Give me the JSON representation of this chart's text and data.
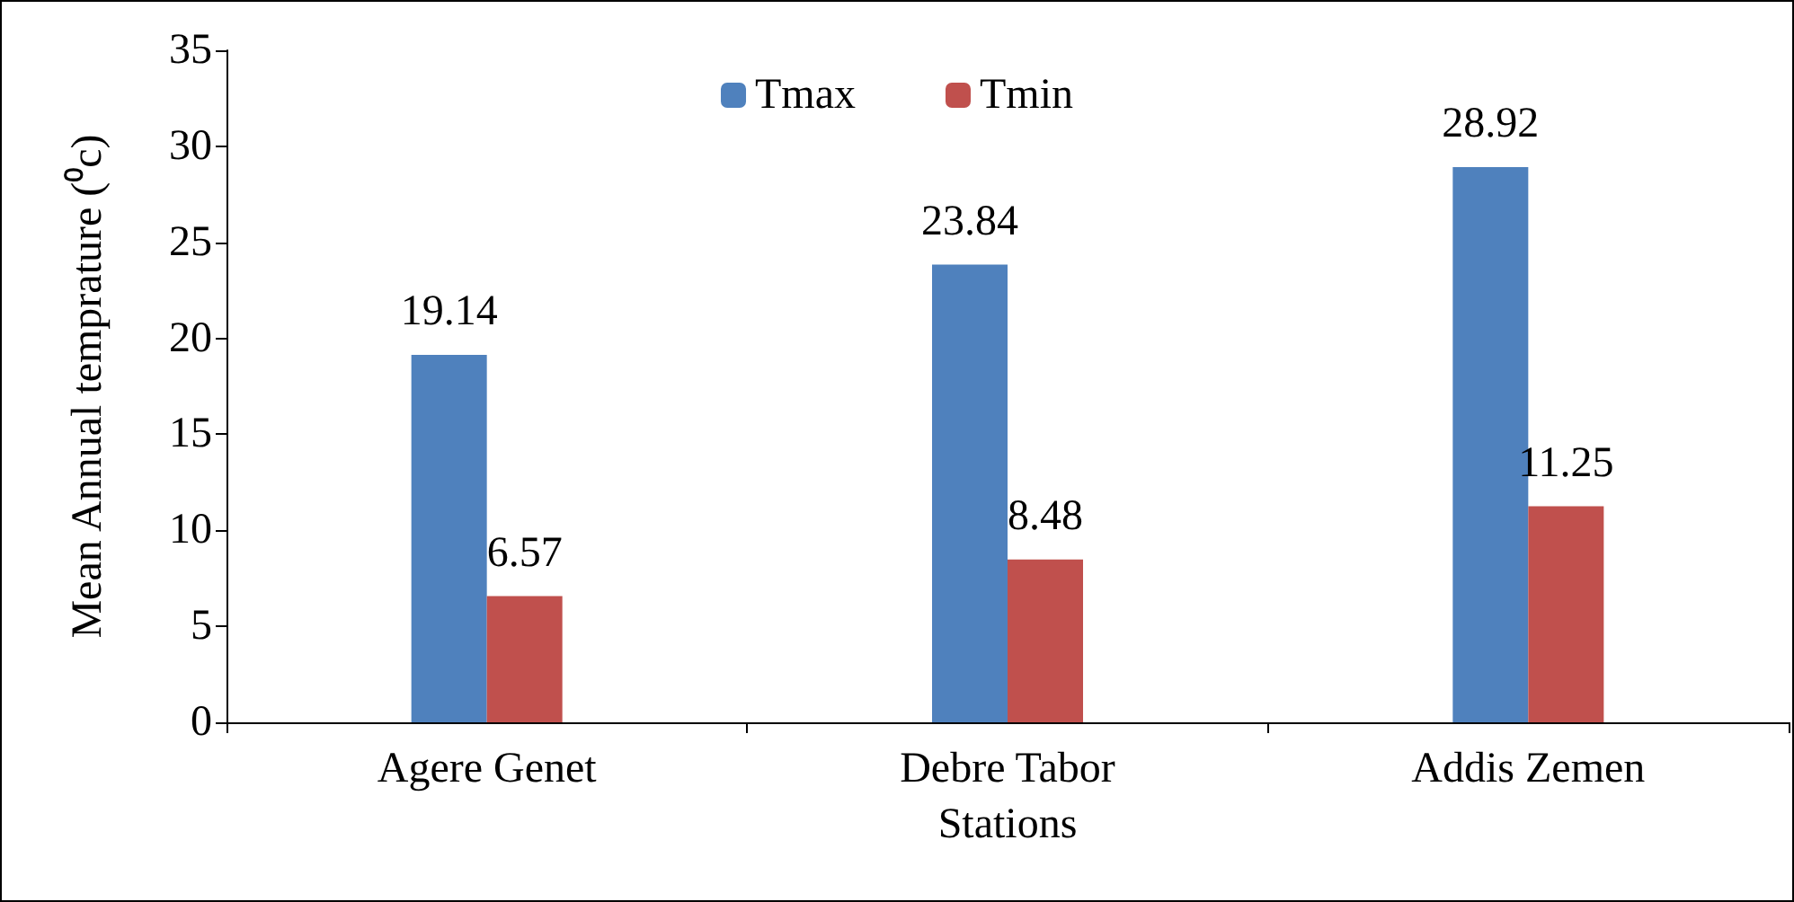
{
  "chart_data": {
    "type": "bar",
    "xlabel": "Stations",
    "ylabel": "Mean Annual temprature (⁰c)",
    "categories": [
      "Agere Genet",
      "Debre Tabor",
      "Addis Zemen"
    ],
    "series": [
      {
        "name": "Tmax",
        "color": "#4f81bd",
        "values": [
          19.14,
          23.84,
          28.92
        ]
      },
      {
        "name": "Tmin",
        "color": "#c0504d",
        "values": [
          6.57,
          8.48,
          11.25
        ]
      }
    ],
    "ylim": [
      0,
      35
    ],
    "yticks": [
      0,
      5,
      10,
      15,
      20,
      25,
      30,
      35
    ],
    "grid": false,
    "legend": "top",
    "data_labels": true
  }
}
